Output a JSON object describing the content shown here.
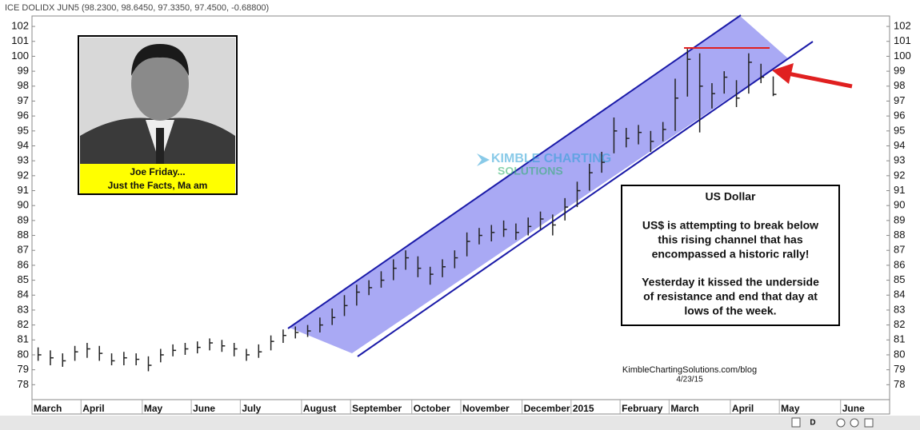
{
  "header": "ICE DOLIDX JUN5 (98.2300, 98.6450, 97.3350, 97.4500, -0.68800)",
  "photo_caption": [
    "Joe Friday...",
    "Just the Facts, Ma am"
  ],
  "logo": [
    "KIMBLE CHARTING",
    "SOLUTIONS"
  ],
  "note": {
    "title": "US Dollar",
    "lines": [
      "US$ is attempting to break below",
      "this rising channel that has",
      "encompassed a historic rally!",
      "Yesterday it kissed the underside",
      "of resistance and end that day at",
      "lows of the week."
    ]
  },
  "credit": [
    "KimbleChartingSolutions.com/blog",
    "4/23/15"
  ],
  "scroll_label": "D",
  "chart_data": {
    "type": "hlc",
    "color": "#222222",
    "categories": [
      "March",
      null,
      null,
      null,
      "April",
      null,
      null,
      null,
      null,
      "May",
      null,
      null,
      null,
      "June",
      null,
      null,
      null,
      "July",
      null,
      null,
      null,
      null,
      "August",
      null,
      null,
      null,
      "September",
      null,
      null,
      null,
      null,
      "October",
      null,
      null,
      null,
      "November",
      null,
      null,
      null,
      null,
      "December",
      null,
      null,
      null,
      "2015",
      null,
      null,
      null,
      "February",
      null,
      null,
      null,
      "March",
      null,
      null,
      null,
      null,
      "April",
      null,
      null,
      null,
      "May",
      null,
      null,
      null,
      null,
      "June",
      null,
      null,
      null
    ],
    "high": [
      80.5,
      80.3,
      80.1,
      80.6,
      80.8,
      80.6,
      80.1,
      80.2,
      80.1,
      79.9,
      80.4,
      80.7,
      80.8,
      80.9,
      81.1,
      81.0,
      80.8,
      80.4,
      80.7,
      81.3,
      81.7,
      81.9,
      82.0,
      82.5,
      83.1,
      84.0,
      84.7,
      85.0,
      85.6,
      86.4,
      87.0,
      86.6,
      85.9,
      86.4,
      87.0,
      88.2,
      88.5,
      88.7,
      89.0,
      88.8,
      89.2,
      89.6,
      89.4,
      90.5,
      91.6,
      92.8,
      93.6,
      95.9,
      95.2,
      95.4,
      95.0,
      95.6,
      98.5,
      100.5,
      100.2,
      98.2,
      99.0,
      98.4,
      100.2,
      99.5,
      98.65,
      null,
      null,
      null,
      null,
      null,
      null,
      null,
      null,
      null
    ],
    "low": [
      79.6,
      79.3,
      79.2,
      79.6,
      79.8,
      79.6,
      79.3,
      79.3,
      79.3,
      78.9,
      79.5,
      79.9,
      80.0,
      80.1,
      80.3,
      80.2,
      79.9,
      79.6,
      79.8,
      80.3,
      80.8,
      81.1,
      81.2,
      81.5,
      82.0,
      82.6,
      83.3,
      84.0,
      84.5,
      85.0,
      85.7,
      85.2,
      84.7,
      85.2,
      85.8,
      86.6,
      87.4,
      87.6,
      87.9,
      87.7,
      88.0,
      88.4,
      88.0,
      89.0,
      89.9,
      91.0,
      92.2,
      93.5,
      93.9,
      94.1,
      93.6,
      94.3,
      95.0,
      97.3,
      94.9,
      96.5,
      97.5,
      96.6,
      97.5,
      98.2,
      97.33,
      null,
      null,
      null,
      null,
      null,
      null,
      null,
      null,
      null
    ],
    "close": [
      80.0,
      79.8,
      79.6,
      80.2,
      80.4,
      80.1,
      79.6,
      79.8,
      79.7,
      79.3,
      80.0,
      80.3,
      80.4,
      80.5,
      80.8,
      80.6,
      80.4,
      80.0,
      80.2,
      80.9,
      81.3,
      81.5,
      81.6,
      82.0,
      82.5,
      83.3,
      84.2,
      84.5,
      85.0,
      85.8,
      86.5,
      85.8,
      85.4,
      85.9,
      86.5,
      87.6,
      88.0,
      88.2,
      88.4,
      88.2,
      88.6,
      89.1,
      88.7,
      89.9,
      91.0,
      92.2,
      92.9,
      95.0,
      94.5,
      94.9,
      94.3,
      95.1,
      97.2,
      99.8,
      98.0,
      97.5,
      98.6,
      97.2,
      99.6,
      98.6,
      97.45,
      null,
      null,
      null,
      null,
      null,
      null,
      null,
      null,
      null
    ],
    "ylim": [
      77,
      102.7
    ],
    "yticks": [
      78,
      79,
      80,
      81,
      82,
      83,
      84,
      85,
      86,
      87,
      88,
      89,
      90,
      91,
      92,
      93,
      94,
      95,
      96,
      97,
      98,
      99,
      100,
      101,
      102
    ]
  }
}
